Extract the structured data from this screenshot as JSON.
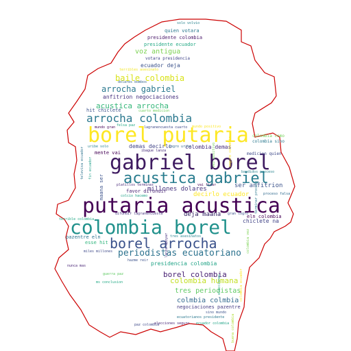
{
  "cloud": {
    "outline_color": "#cc0000",
    "words": [
      {
        "text": "putaria acustica",
        "color": "#440154"
      },
      {
        "text": "colombia borel",
        "color": "#21918c"
      },
      {
        "text": "gabriel borel",
        "color": "#3e1a60"
      },
      {
        "text": "borel putaria",
        "color": "#fde725"
      },
      {
        "text": "acustica gabriel",
        "color": "#287c8e"
      },
      {
        "text": "borel arrocha",
        "color": "#3b528b"
      },
      {
        "text": "arrocha colombia",
        "color": "#2a788e"
      },
      {
        "text": "periodistas ecuatoriano",
        "color": "#2c728e"
      },
      {
        "text": "arrocha gabriel",
        "color": "#2a788e"
      },
      {
        "text": "borel colombia",
        "color": "#482173"
      },
      {
        "text": "colombia humana",
        "color": "#c2df23"
      },
      {
        "text": "baile colombia",
        "color": "#d8e219"
      },
      {
        "text": "acustica arrocha",
        "color": "#35b779"
      },
      {
        "text": "tres periodistas",
        "color": "#5ec962"
      },
      {
        "text": "colmbia colmbia",
        "color": "#31688e"
      },
      {
        "text": "decirlo ecuador",
        "color": "#fde725"
      },
      {
        "text": "voz antigua",
        "color": "#7ad151"
      },
      {
        "text": "deja maana",
        "color": "#2d1e5f"
      },
      {
        "text": "ser anfitrion",
        "color": "#3b528b"
      },
      {
        "text": "millones dolares",
        "color": "#46337e"
      },
      {
        "text": "presidencia colombia",
        "color": "#20a386"
      },
      {
        "text": "anfitrion negociaciones",
        "color": "#46307e"
      },
      {
        "text": "ecuador deja",
        "color": "#3b528b"
      },
      {
        "text": "demas decirlo",
        "color": "#414487"
      },
      {
        "text": "colombia demas",
        "color": "#472d7b"
      },
      {
        "text": "negociaciones pazentre",
        "color": "#443a83"
      },
      {
        "text": "chiclete na",
        "color": "#414487"
      },
      {
        "text": "presidente colombia",
        "color": "#481769"
      },
      {
        "text": "presidente ecuador",
        "color": "#22a884"
      },
      {
        "text": "quien votara",
        "color": "#2a788e"
      },
      {
        "text": "votara presidencia",
        "color": "#404688"
      },
      {
        "text": "hit chiclete",
        "color": "#3b528b"
      },
      {
        "text": "favor difundir",
        "color": "#482475"
      },
      {
        "text": "mente vai",
        "color": "#440154"
      },
      {
        "text": "esse hit",
        "color": "#2fb47c"
      },
      {
        "text": "pazentre eln",
        "color": "#2c728e"
      },
      {
        "text": "eln colombia",
        "color": "#440154"
      },
      {
        "text": "maana ser",
        "color": "#3b528b"
      },
      {
        "text": "solo volvio",
        "color": "#26828e"
      },
      {
        "text": "dolares bombos",
        "color": "#33638d"
      },
      {
        "text": "cuarto medicion",
        "color": "#6ece58"
      },
      {
        "text": "terribles asesinato",
        "color": "#f1e51d"
      },
      {
        "text": "mundo gran",
        "color": "#440154"
      },
      {
        "text": "felsa paz",
        "color": "#22a884"
      },
      {
        "text": "lagranencuesta cuarto",
        "color": "#3e4989"
      },
      {
        "text": "mundo positivo",
        "color": "#fde725"
      },
      {
        "text": "colombia como",
        "color": "#73d056"
      },
      {
        "text": "colombia sino",
        "color": "#2a788e"
      },
      {
        "text": "medicion quien",
        "color": "#3e4989"
      },
      {
        "text": "bandidos proceso",
        "color": "#26828e"
      },
      {
        "text": "proceso falsa",
        "color": "#306a8e"
      },
      {
        "text": "uribe solo",
        "color": "#277f8e"
      },
      {
        "text": "logro uribe",
        "color": "#31688e"
      },
      {
        "text": "ibague lanza",
        "color": "#472c7a"
      },
      {
        "text": "platillos terminar",
        "color": "#482878"
      },
      {
        "text": "colcio hacemo",
        "color": "#1fa187"
      },
      {
        "text": "vai ficar",
        "color": "#440154"
      },
      {
        "text": "gran logro",
        "color": "#3b528b"
      },
      {
        "text": "difundir lagranencuesta",
        "color": "#46337e"
      },
      {
        "text": "tres asesinatos",
        "color": "#26828e"
      },
      {
        "text": "terrible colombia",
        "color": "#22a884"
      },
      {
        "text": "miles millones",
        "color": "#3e4989"
      },
      {
        "text": "hazme reir",
        "color": "#3b528b"
      },
      {
        "text": "ecuatorianos presidente",
        "color": "#2a788e"
      },
      {
        "text": "sino mundo",
        "color": "#3b528b"
      },
      {
        "text": "ecuador colombia",
        "color": "#20a386"
      },
      {
        "text": "elecciones seguro",
        "color": "#482475"
      },
      {
        "text": "lanza apoyar",
        "color": "#46307e"
      },
      {
        "text": "vez positivo",
        "color": "#6ece58"
      },
      {
        "text": "seguro colombia",
        "color": "#fde725"
      },
      {
        "text": "terminar proceso",
        "color": "#2a788e"
      },
      {
        "text": "nunca mas",
        "color": "#482475"
      },
      {
        "text": "guerra paz",
        "color": "#5ec962"
      },
      {
        "text": "colombia vez",
        "color": "#7ad151"
      },
      {
        "text": "elecciones",
        "color": "#1fa187"
      },
      {
        "text": "colombia ecuador",
        "color": "#fde725"
      },
      {
        "text": "buena colombia",
        "color": "#addc30"
      },
      {
        "text": "ms conclusion",
        "color": "#22a884"
      },
      {
        "text": "paz colombia",
        "color": "#3e4989"
      },
      {
        "text": "televisa ecuador",
        "color": "#2c728e"
      },
      {
        "text": "fin ecuador",
        "color": "#1f9e89"
      }
    ]
  }
}
